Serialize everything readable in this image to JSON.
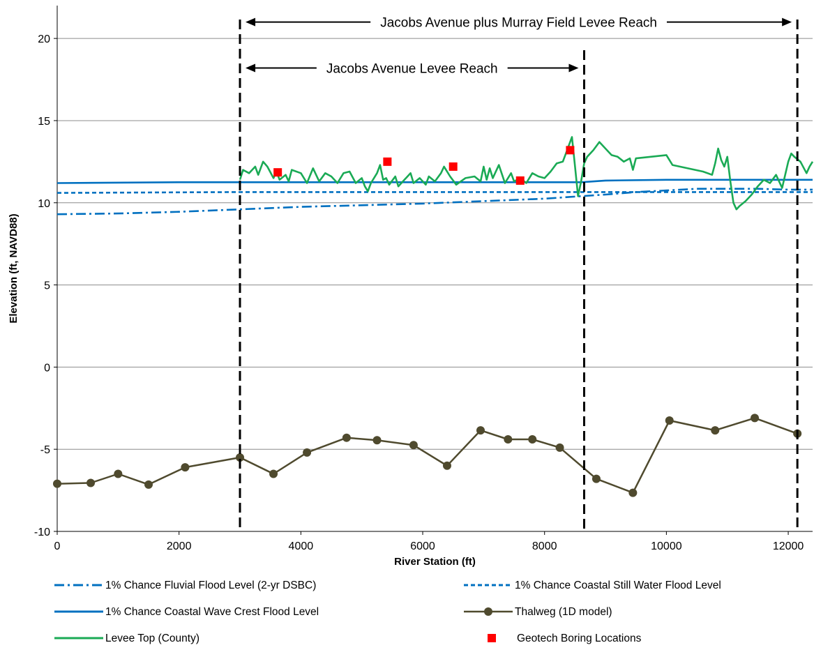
{
  "chart_data": {
    "type": "line",
    "title": "",
    "xlabel": "River Station (ft)",
    "ylabel": "Elevation (ft, NAVD88)",
    "xlim": [
      0,
      12400
    ],
    "ylim": [
      -10,
      22
    ],
    "xticks": [
      0,
      2000,
      4000,
      6000,
      8000,
      10000,
      12000
    ],
    "yticks": [
      -10,
      -5,
      0,
      5,
      10,
      15,
      20
    ],
    "grid": "horizontal",
    "legend_position": "bottom",
    "series": [
      {
        "name": "1% Chance Fluvial Flood Level (2-yr DSBC)",
        "color": "#0070c0",
        "style": "dash-dot",
        "points": [
          [
            0,
            9.3
          ],
          [
            1000,
            9.35
          ],
          [
            2000,
            9.45
          ],
          [
            3000,
            9.6
          ],
          [
            4000,
            9.75
          ],
          [
            5000,
            9.85
          ],
          [
            6000,
            9.95
          ],
          [
            7000,
            10.1
          ],
          [
            8000,
            10.25
          ],
          [
            8600,
            10.4
          ],
          [
            9000,
            10.5
          ],
          [
            9500,
            10.65
          ],
          [
            10000,
            10.75
          ],
          [
            10500,
            10.85
          ],
          [
            11000,
            10.85
          ],
          [
            11500,
            10.85
          ],
          [
            12000,
            10.8
          ],
          [
            12400,
            10.8
          ]
        ]
      },
      {
        "name": "1% Chance Coastal Still Water Flood Level",
        "color": "#0070c0",
        "style": "dashed",
        "points": [
          [
            0,
            10.6
          ],
          [
            3000,
            10.65
          ],
          [
            6000,
            10.65
          ],
          [
            9000,
            10.65
          ],
          [
            12400,
            10.65
          ]
        ]
      },
      {
        "name": "1% Chance Coastal Wave Crest Flood Level",
        "color": "#0070c0",
        "style": "solid",
        "points": [
          [
            0,
            11.2
          ],
          [
            2000,
            11.25
          ],
          [
            4000,
            11.25
          ],
          [
            6000,
            11.25
          ],
          [
            8600,
            11.25
          ],
          [
            9000,
            11.35
          ],
          [
            10000,
            11.4
          ],
          [
            12400,
            11.4
          ]
        ]
      },
      {
        "name": "Thalweg (1D model)",
        "color": "#4f4a2e",
        "style": "solid-markers",
        "points": [
          [
            0,
            -7.1
          ],
          [
            550,
            -7.05
          ],
          [
            1000,
            -6.5
          ],
          [
            1500,
            -7.15
          ],
          [
            2100,
            -6.1
          ],
          [
            3000,
            -5.5
          ],
          [
            3550,
            -6.5
          ],
          [
            4100,
            -5.2
          ],
          [
            4750,
            -4.3
          ],
          [
            5250,
            -4.45
          ],
          [
            5850,
            -4.75
          ],
          [
            6400,
            -6.0
          ],
          [
            6950,
            -3.85
          ],
          [
            7400,
            -4.4
          ],
          [
            7800,
            -4.4
          ],
          [
            8250,
            -4.9
          ],
          [
            8850,
            -6.8
          ],
          [
            9450,
            -7.65
          ],
          [
            10050,
            -3.25
          ],
          [
            10800,
            -3.85
          ],
          [
            11450,
            -3.1
          ],
          [
            12150,
            -4.05
          ]
        ]
      },
      {
        "name": "Levee Top (County)",
        "color": "#1aaa55",
        "style": "solid",
        "points": [
          [
            3000,
            11.4
          ],
          [
            3050,
            12.0
          ],
          [
            3150,
            11.8
          ],
          [
            3250,
            12.2
          ],
          [
            3300,
            11.7
          ],
          [
            3380,
            12.5
          ],
          [
            3450,
            12.2
          ],
          [
            3550,
            11.5
          ],
          [
            3600,
            11.9
          ],
          [
            3650,
            11.4
          ],
          [
            3750,
            11.7
          ],
          [
            3800,
            11.3
          ],
          [
            3850,
            12.0
          ],
          [
            4000,
            11.8
          ],
          [
            4100,
            11.2
          ],
          [
            4200,
            12.1
          ],
          [
            4300,
            11.3
          ],
          [
            4400,
            11.8
          ],
          [
            4500,
            11.6
          ],
          [
            4600,
            11.2
          ],
          [
            4700,
            11.8
          ],
          [
            4800,
            11.9
          ],
          [
            4900,
            11.2
          ],
          [
            5000,
            11.5
          ],
          [
            5050,
            11.0
          ],
          [
            5100,
            10.7
          ],
          [
            5150,
            11.2
          ],
          [
            5250,
            11.8
          ],
          [
            5300,
            12.3
          ],
          [
            5350,
            11.4
          ],
          [
            5400,
            11.5
          ],
          [
            5450,
            11.1
          ],
          [
            5550,
            11.6
          ],
          [
            5600,
            11.0
          ],
          [
            5700,
            11.4
          ],
          [
            5800,
            11.8
          ],
          [
            5850,
            11.2
          ],
          [
            5950,
            11.5
          ],
          [
            6050,
            11.1
          ],
          [
            6100,
            11.6
          ],
          [
            6200,
            11.3
          ],
          [
            6300,
            11.8
          ],
          [
            6350,
            12.2
          ],
          [
            6450,
            11.6
          ],
          [
            6550,
            11.1
          ],
          [
            6700,
            11.5
          ],
          [
            6850,
            11.6
          ],
          [
            6950,
            11.3
          ],
          [
            7000,
            12.2
          ],
          [
            7050,
            11.4
          ],
          [
            7100,
            12.1
          ],
          [
            7150,
            11.5
          ],
          [
            7250,
            12.3
          ],
          [
            7350,
            11.2
          ],
          [
            7450,
            11.8
          ],
          [
            7500,
            11.3
          ],
          [
            7600,
            11.5
          ],
          [
            7700,
            11.2
          ],
          [
            7800,
            11.8
          ],
          [
            7900,
            11.6
          ],
          [
            8000,
            11.5
          ],
          [
            8100,
            11.9
          ],
          [
            8200,
            12.4
          ],
          [
            8300,
            12.5
          ],
          [
            8350,
            13.0
          ],
          [
            8400,
            13.5
          ],
          [
            8450,
            14.0
          ],
          [
            8500,
            12.2
          ],
          [
            8550,
            10.4
          ],
          [
            8600,
            11.3
          ],
          [
            8650,
            12.4
          ],
          [
            8700,
            12.8
          ],
          [
            8800,
            13.2
          ],
          [
            8900,
            13.7
          ],
          [
            9000,
            13.3
          ],
          [
            9100,
            12.9
          ],
          [
            9200,
            12.8
          ],
          [
            9300,
            12.5
          ],
          [
            9400,
            12.7
          ],
          [
            9450,
            12.0
          ],
          [
            9500,
            12.7
          ],
          [
            10000,
            12.9
          ],
          [
            10100,
            12.3
          ],
          [
            10600,
            11.9
          ],
          [
            10750,
            11.7
          ],
          [
            10800,
            12.4
          ],
          [
            10850,
            13.3
          ],
          [
            10900,
            12.6
          ],
          [
            10950,
            12.2
          ],
          [
            11000,
            12.8
          ],
          [
            11050,
            11.3
          ],
          [
            11100,
            10.0
          ],
          [
            11150,
            9.6
          ],
          [
            11200,
            9.8
          ],
          [
            11300,
            10.1
          ],
          [
            11400,
            10.5
          ],
          [
            11500,
            11.0
          ],
          [
            11600,
            11.4
          ],
          [
            11700,
            11.2
          ],
          [
            11800,
            11.7
          ],
          [
            11900,
            10.9
          ],
          [
            12000,
            12.5
          ],
          [
            12050,
            13.0
          ],
          [
            12100,
            12.8
          ],
          [
            12200,
            12.5
          ],
          [
            12300,
            11.8
          ],
          [
            12350,
            12.2
          ],
          [
            12400,
            12.5
          ]
        ]
      },
      {
        "name": "Geotech Boring Locations",
        "color": "#ff0000",
        "style": "square-markers",
        "points": [
          [
            3620,
            11.85
          ],
          [
            5420,
            12.5
          ],
          [
            6500,
            12.2
          ],
          [
            7600,
            11.35
          ],
          [
            8420,
            13.2
          ]
        ]
      }
    ],
    "vertical_lines": [
      3000,
      8650,
      12150
    ],
    "annotations": [
      {
        "text": "Jacobs Avenue plus Murray Field Levee Reach",
        "x_from": 3000,
        "x_to": 12150,
        "y": 21.0
      },
      {
        "text": "Jacobs Avenue Levee Reach",
        "x_from": 3000,
        "x_to": 8650,
        "y": 18.2
      }
    ]
  }
}
